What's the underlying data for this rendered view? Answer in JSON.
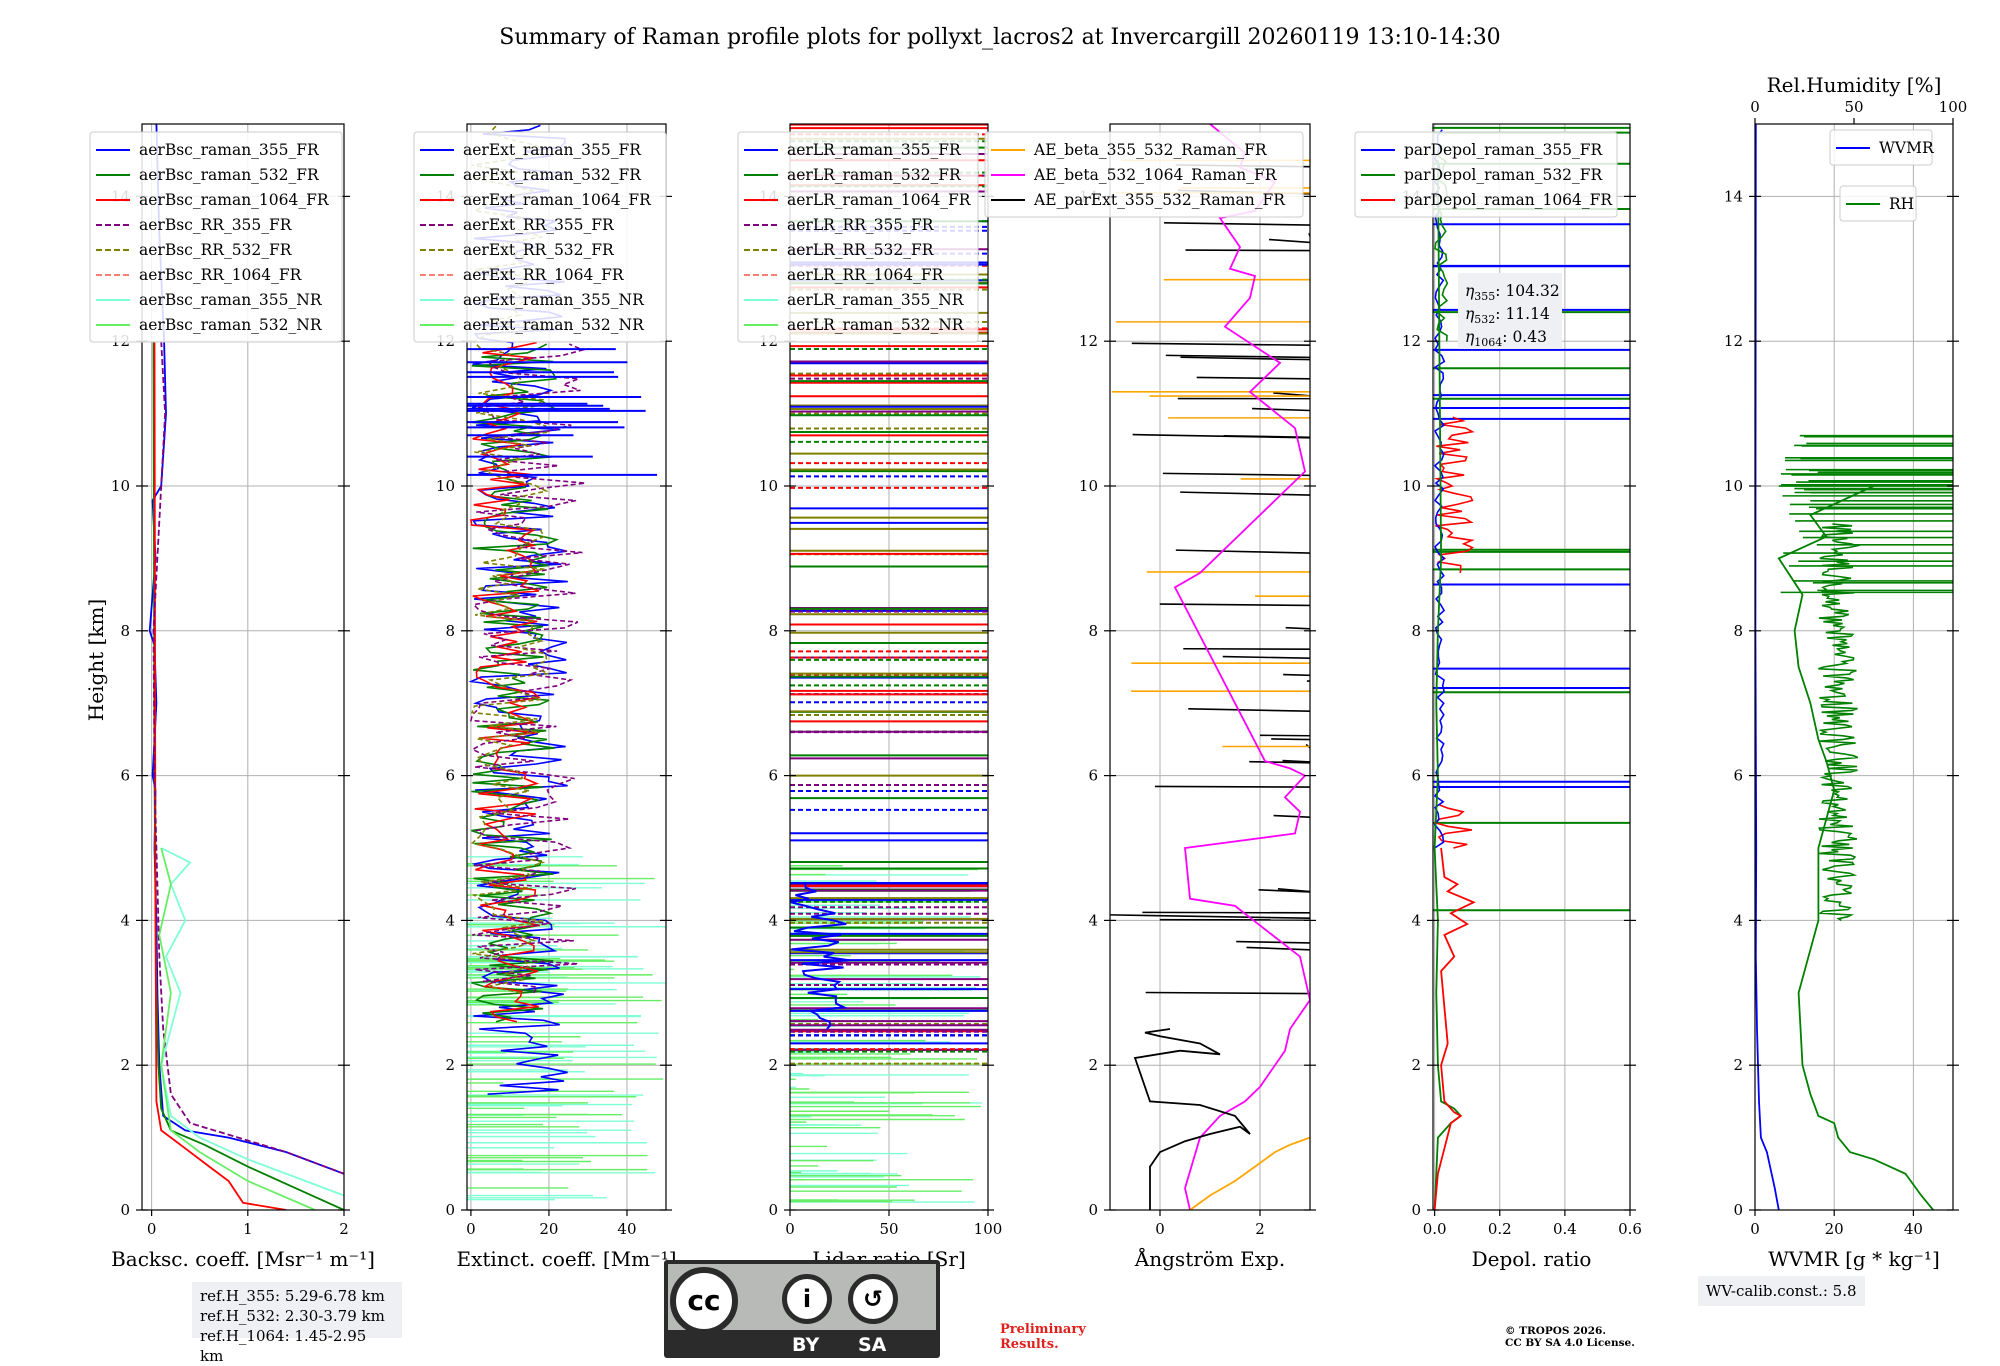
{
  "title": "Summary of Raman profile plots for pollyxt_lacros2 at Invercargill 20260119 13:10-14:30",
  "ylabel": "Height [km]",
  "height_ticks": [
    "0",
    "2",
    "4",
    "6",
    "8",
    "10",
    "12",
    "14"
  ],
  "colors": {
    "blue": "#0000ff",
    "green": "#008000",
    "red": "#ff0000",
    "purple": "#800080",
    "olive": "#808000",
    "salmon": "#fa8072",
    "cyan": "#7fffd4",
    "lime": "#66ee66",
    "orange": "#ffa500",
    "magenta": "#ff00ff",
    "black": "#000000",
    "grid": "#b0b0b0"
  },
  "chart_data": [
    {
      "id": "bsc",
      "type": "line",
      "xlabel": "Backsc. coeff. [Msr⁻¹ m⁻¹]",
      "xlim": [
        -0.1,
        2.0
      ],
      "xticks": [
        "0",
        "1",
        "2"
      ],
      "ylim": [
        0,
        15
      ],
      "legend": [
        {
          "label": "aerBsc_raman_355_FR",
          "color": "#0000ff",
          "dash": false
        },
        {
          "label": "aerBsc_raman_532_FR",
          "color": "#008000",
          "dash": false
        },
        {
          "label": "aerBsc_raman_1064_FR",
          "color": "#ff0000",
          "dash": false
        },
        {
          "label": "aerBsc_RR_355_FR",
          "color": "#800080",
          "dash": true
        },
        {
          "label": "aerBsc_RR_532_FR",
          "color": "#808000",
          "dash": true
        },
        {
          "label": "aerBsc_RR_1064_FR",
          "color": "#fa8072",
          "dash": true
        },
        {
          "label": "aerBsc_raman_355_NR",
          "color": "#7fffd4",
          "dash": false
        },
        {
          "label": "aerBsc_raman_532_NR",
          "color": "#66ee66",
          "dash": false
        }
      ],
      "series": [
        {
          "name": "aerBsc_raman_355_FR",
          "color": "#0000ff",
          "x": [
            2.0,
            1.4,
            0.8,
            0.35,
            0.12,
            0.08,
            0.06,
            0.05,
            0.03,
            0.04,
            0.01,
            0.05,
            0.03,
            -0.02,
            0.04,
            0.01,
            0.1,
            0.15,
            0.13,
            0.08,
            0.05
          ],
          "y": [
            0.5,
            0.8,
            1.0,
            1.1,
            1.3,
            2.0,
            3.0,
            4.0,
            5.0,
            5.8,
            6.0,
            7.0,
            7.8,
            8.0,
            9.0,
            9.8,
            10.0,
            11.0,
            12.0,
            13.5,
            15.0
          ]
        },
        {
          "name": "aerBsc_raman_532_FR",
          "color": "#008000",
          "x": [
            2.0,
            1.5,
            1.0,
            0.55,
            0.2,
            0.1,
            0.07,
            0.05,
            0.04,
            0.03,
            0.02
          ],
          "y": [
            0.0,
            0.3,
            0.6,
            0.9,
            1.1,
            1.4,
            2.0,
            3.0,
            4.0,
            6.0,
            12.0
          ]
        },
        {
          "name": "aerBsc_raman_1064_FR",
          "color": "#ff0000",
          "x": [
            1.4,
            0.95,
            0.8,
            0.6,
            0.3,
            0.1,
            0.05,
            0.04,
            0.03
          ],
          "y": [
            0.0,
            0.1,
            0.4,
            0.6,
            0.9,
            1.1,
            1.5,
            4.0,
            12.0
          ]
        },
        {
          "name": "aerBsc_RR_355_FR",
          "color": "#800080",
          "dash": true,
          "x": [
            2.0,
            1.4,
            0.9,
            0.4,
            0.2,
            0.12,
            0.08,
            0.05,
            0.03,
            0.02,
            0.1,
            0.14,
            0.1
          ],
          "y": [
            0.5,
            0.8,
            1.0,
            1.2,
            1.6,
            2.5,
            3.5,
            5.0,
            6.0,
            8.0,
            10.0,
            11.0,
            12.0
          ]
        },
        {
          "name": "aerBsc_raman_355_NR",
          "color": "#7fffd4",
          "x": [
            2.0,
            1.0,
            0.5,
            0.2,
            0.1,
            0.3,
            0.15,
            0.35,
            0.2,
            0.4,
            0.1
          ],
          "y": [
            0.2,
            0.7,
            1.0,
            1.3,
            2.0,
            3.0,
            3.5,
            4.0,
            4.5,
            4.8,
            5.0
          ]
        },
        {
          "name": "aerBsc_raman_532_NR",
          "color": "#66ee66",
          "x": [
            1.7,
            1.0,
            0.5,
            0.2,
            0.1,
            0.2,
            0.08,
            0.2,
            0.1
          ],
          "y": [
            0.0,
            0.4,
            0.8,
            1.1,
            2.0,
            3.0,
            3.8,
            4.5,
            5.0
          ]
        }
      ]
    },
    {
      "id": "ext",
      "type": "line",
      "xlabel": "Extinct. coeff. [Mm⁻¹]",
      "xlim": [
        -1,
        50
      ],
      "xticks": [
        "0",
        "20",
        "40"
      ],
      "ylim": [
        0,
        15
      ],
      "legend": [
        {
          "label": "aerExt_raman_355_FR",
          "color": "#0000ff",
          "dash": false
        },
        {
          "label": "aerExt_raman_532_FR",
          "color": "#008000",
          "dash": false
        },
        {
          "label": "aerExt_raman_1064_FR",
          "color": "#ff0000",
          "dash": false
        },
        {
          "label": "aerExt_RR_355_FR",
          "color": "#800080",
          "dash": true
        },
        {
          "label": "aerExt_RR_532_FR",
          "color": "#808000",
          "dash": true
        },
        {
          "label": "aerExt_RR_1064_FR",
          "color": "#fa8072",
          "dash": true
        },
        {
          "label": "aerExt_raman_355_NR",
          "color": "#7fffd4",
          "dash": false
        },
        {
          "label": "aerExt_raman_532_NR",
          "color": "#66ee66",
          "dash": false
        }
      ]
    },
    {
      "id": "lr",
      "type": "line",
      "xlabel": "Lidar ratio [Sr]",
      "xlim": [
        0,
        100
      ],
      "xticks": [
        "0",
        "50",
        "100"
      ],
      "ylim": [
        0,
        15
      ],
      "legend": [
        {
          "label": "aerLR_raman_355_FR",
          "color": "#0000ff",
          "dash": false
        },
        {
          "label": "aerLR_raman_532_FR",
          "color": "#008000",
          "dash": false
        },
        {
          "label": "aerLR_raman_1064_FR",
          "color": "#ff0000",
          "dash": false
        },
        {
          "label": "aerLR_RR_355_FR",
          "color": "#800080",
          "dash": true
        },
        {
          "label": "aerLR_RR_532_FR",
          "color": "#808000",
          "dash": true
        },
        {
          "label": "aerLR_RR_1064_FR",
          "color": "#fa8072",
          "dash": true
        },
        {
          "label": "aerLR_raman_355_NR",
          "color": "#7fffd4",
          "dash": false
        },
        {
          "label": "aerLR_raman_532_NR",
          "color": "#66ee66",
          "dash": false
        }
      ]
    },
    {
      "id": "ae",
      "type": "line",
      "xlabel": "Ångström Exp.",
      "xlim": [
        -1,
        3
      ],
      "xticks": [
        "0",
        "2"
      ],
      "ylim": [
        0,
        15
      ],
      "legend": [
        {
          "label": "AE_beta_355_532_Raman_FR",
          "color": "#ffa500",
          "dash": false
        },
        {
          "label": "AE_beta_532_1064_Raman_FR",
          "color": "#ff00ff",
          "dash": false
        },
        {
          "label": "AE_parExt_355_532_Raman_FR",
          "color": "#000000",
          "dash": false
        }
      ],
      "series": [
        {
          "name": "AE_beta_532_1064_Raman_FR",
          "color": "#ff00ff",
          "x": [
            0.6,
            0.5,
            0.8,
            1.2,
            1.7,
            2.0,
            2.2,
            2.5,
            2.6,
            3.0,
            2.8,
            1.5,
            0.6,
            0.5,
            2.7,
            2.8,
            2.5,
            2.9,
            2.6,
            2.1,
            0.3,
            0.8,
            2.9,
            2.7,
            1.8,
            2.4,
            1.3,
            1.8,
            1.9,
            1.4,
            1.6,
            1.2,
            1.9,
            2.3,
            1.6,
            1.7,
            1.0
          ],
          "y": [
            0.0,
            0.3,
            1.0,
            1.3,
            1.5,
            1.7,
            1.9,
            2.2,
            2.5,
            2.9,
            3.5,
            4.2,
            4.3,
            5.0,
            5.2,
            5.5,
            5.7,
            6.0,
            6.1,
            6.2,
            8.6,
            8.8,
            10.2,
            10.8,
            11.3,
            11.7,
            12.2,
            12.6,
            12.9,
            13.0,
            13.3,
            13.7,
            13.8,
            14.2,
            14.4,
            14.6,
            15.0
          ]
        },
        {
          "name": "AE_beta_355_532_Raman_FR",
          "color": "#ffa500",
          "x": [
            0.6,
            1.0,
            1.5,
            1.9,
            2.3,
            2.6,
            3.0
          ],
          "y": [
            0.0,
            0.2,
            0.4,
            0.6,
            0.8,
            0.9,
            1.0
          ]
        },
        {
          "name": "AE_parExt_355_532_Raman_FR",
          "color": "#000000",
          "x": [
            -0.2,
            -0.2,
            0.0,
            0.5,
            1.0,
            1.6,
            1.8,
            1.5,
            0.8,
            -0.2,
            -0.5,
            0.4,
            1.2,
            0.8,
            0.0,
            -0.3,
            0.2
          ],
          "y": [
            0.0,
            0.6,
            0.8,
            0.95,
            1.05,
            1.15,
            1.05,
            1.3,
            1.45,
            1.5,
            2.1,
            2.2,
            2.15,
            2.3,
            2.4,
            2.45,
            2.5
          ]
        }
      ]
    },
    {
      "id": "depol",
      "type": "line",
      "xlabel": "Depol. ratio",
      "xlim": [
        -0.005,
        0.6
      ],
      "xticks": [
        "0.0",
        "0.2",
        "0.4",
        "0.6"
      ],
      "ylim": [
        0,
        15
      ],
      "legend": [
        {
          "label": "parDepol_raman_355_FR",
          "color": "#0000ff",
          "dash": false
        },
        {
          "label": "parDepol_raman_532_FR",
          "color": "#008000",
          "dash": false
        },
        {
          "label": "parDepol_raman_1064_FR",
          "color": "#ff0000",
          "dash": false
        }
      ],
      "annotation": [
        {
          "sym": "η",
          "sub": "355",
          "value": ": 104.32"
        },
        {
          "sym": "η",
          "sub": "532",
          "value": ": 11.14"
        },
        {
          "sym": "η",
          "sub": "1064",
          "value": ": 0.43"
        }
      ],
      "series": [
        {
          "name": "parDepol_raman_532_FR",
          "color": "#008000",
          "x": [
            0.0,
            0.005,
            0.01,
            0.05,
            0.08,
            0.06,
            0.02,
            0.01,
            0.005,
            0.01,
            0.0,
            0.01,
            0.005,
            0.01,
            0.02,
            0.01
          ],
          "y": [
            0.0,
            0.5,
            1.0,
            1.2,
            1.3,
            1.4,
            1.5,
            2.0,
            3.0,
            4.0,
            5.0,
            6.0,
            7.0,
            8.0,
            9.0,
            14.5
          ]
        },
        {
          "name": "parDepol_raman_1064_FR",
          "color": "#ff0000",
          "x": [
            0.0,
            0.01,
            0.05,
            0.08,
            0.06,
            0.03,
            0.02,
            0.04,
            0.02,
            0.06,
            0.03,
            0.1,
            0.05,
            0.12,
            0.04,
            0.07,
            0.03,
            0.02
          ],
          "y": [
            0.0,
            0.5,
            1.2,
            1.3,
            1.35,
            1.5,
            2.0,
            2.3,
            3.3,
            3.5,
            3.8,
            3.95,
            4.1,
            4.25,
            4.4,
            4.5,
            4.6,
            5.0
          ]
        }
      ]
    },
    {
      "id": "wv",
      "type": "line",
      "xlabel": "WVMR [g * kg⁻¹]",
      "xlim": [
        0,
        50
      ],
      "xticks": [
        "0",
        "20",
        "40"
      ],
      "x2label": "Rel.Humidity [%]",
      "x2lim": [
        0,
        100
      ],
      "x2ticks": [
        "0",
        "50",
        "100"
      ],
      "ylim": [
        0,
        15
      ],
      "legend": [
        {
          "label": "WVMR",
          "color": "#0000ff",
          "dash": false
        }
      ],
      "legend2": [
        {
          "label": "RH",
          "color": "#008000",
          "dash": false
        }
      ],
      "series": [
        {
          "name": "WVMR",
          "color": "#0000ff",
          "x": [
            6.0,
            5.0,
            3.0,
            1.5,
            1.0,
            0.5,
            0.2,
            0.3,
            0.1,
            0.2
          ],
          "y": [
            0.0,
            0.3,
            0.8,
            1.0,
            1.5,
            2.5,
            3.5,
            5.0,
            8.0,
            15.0
          ]
        },
        {
          "name": "RH",
          "color": "#008000",
          "x": [
            45.0,
            42.0,
            38.0,
            30.0,
            24.0,
            21.0,
            20.0,
            16.0,
            14.0,
            12.0,
            11.0,
            16.0,
            16.0,
            20.0,
            18.0,
            16.0,
            14.0,
            11.0,
            10.0,
            12.0,
            6.0,
            18.0,
            14.0,
            22.0,
            30.0
          ],
          "y": [
            0.0,
            0.2,
            0.5,
            0.7,
            0.8,
            1.0,
            1.2,
            1.3,
            1.6,
            2.0,
            3.0,
            4.0,
            5.0,
            5.8,
            6.2,
            6.5,
            7.0,
            7.5,
            8.0,
            8.5,
            9.0,
            9.3,
            9.6,
            9.8,
            10.0
          ]
        }
      ]
    }
  ],
  "ref_heights": [
    "ref.H_355: 5.29-6.78 km",
    "ref.H_532: 2.30-3.79 km",
    "ref.H_1064: 1.45-2.95 km"
  ],
  "wv_calib": "WV-calib.const.: 5.8",
  "license": {
    "cc": "cc",
    "by": "BY",
    "sa": "SA",
    "by_icon": "i",
    "sa_icon": "↺"
  },
  "preliminary": [
    "Preliminary",
    "Results."
  ],
  "copyright": [
    "© TROPOS 2026.",
    "CC BY SA 4.0 License."
  ]
}
